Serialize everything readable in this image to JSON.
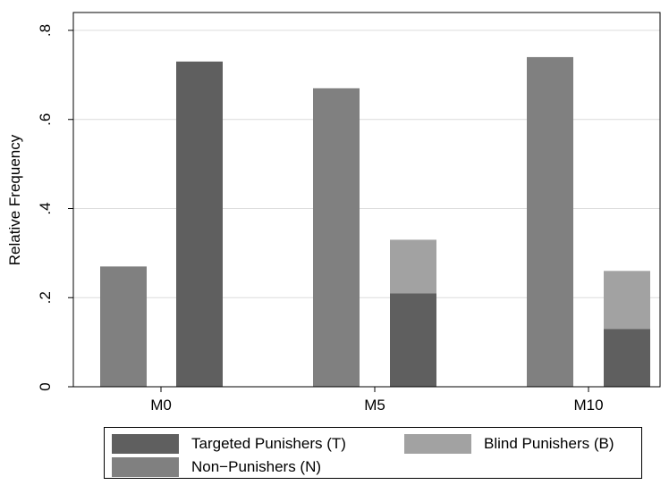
{
  "chart_data": {
    "type": "bar",
    "ylabel": "Relative Frequency",
    "xlabel": "",
    "ylim": [
      0,
      0.8
    ],
    "yticks": [
      0,
      0.2,
      0.4,
      0.6,
      0.8
    ],
    "ytick_labels": [
      "0",
      ".2",
      ".4",
      ".6",
      ".8"
    ],
    "grid": true,
    "legend_position": "bottom",
    "categories": [
      "M0",
      "M5",
      "M10"
    ],
    "bars": [
      {
        "category": "M0",
        "stack": [
          {
            "series": "Non−Punishers (N)",
            "value": 0.27
          }
        ]
      },
      {
        "category": "M0",
        "stack": [
          {
            "series": "Targeted Punishers (T)",
            "value": 0.73
          }
        ]
      },
      {
        "category": "M5",
        "stack": [
          {
            "series": "Non−Punishers (N)",
            "value": 0.67
          }
        ]
      },
      {
        "category": "M5",
        "stack": [
          {
            "series": "Targeted Punishers (T)",
            "value": 0.21
          },
          {
            "series": "Blind Punishers (B)",
            "value": 0.12
          }
        ]
      },
      {
        "category": "M10",
        "stack": [
          {
            "series": "Non−Punishers (N)",
            "value": 0.74
          }
        ]
      },
      {
        "category": "M10",
        "stack": [
          {
            "series": "Targeted Punishers (T)",
            "value": 0.13
          },
          {
            "series": "Blind Punishers (B)",
            "value": 0.13
          }
        ]
      }
    ],
    "series": [
      {
        "name": "Targeted Punishers (T)",
        "color": "#5f5f5f"
      },
      {
        "name": "Blind Punishers (B)",
        "color": "#a2a2a2"
      },
      {
        "name": "Non−Punishers (N)",
        "color": "#808080"
      }
    ]
  }
}
